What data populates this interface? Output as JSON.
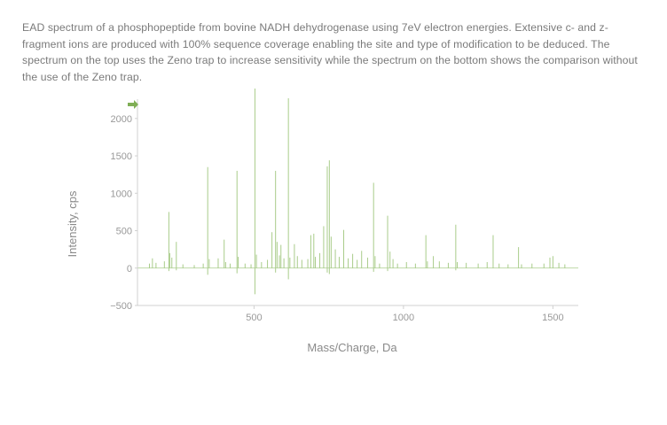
{
  "caption": "EAD spectrum of a phosphopeptide from bovine NADH dehydrogenase using 7eV electron energies. Extensive c- and z-fragment ions are produced with 100% sequence coverage enabling the site and type of modification to be deduced. The spectrum on the top uses the Zeno trap to increase sensitivity while the spectrum on the bottom shows the comparison without the use of the Zeno trap.",
  "colors": {
    "spectrum": "#a9cc8a",
    "axis": "#d0d0d0",
    "arrow": "#7fae55",
    "text": "#888888"
  },
  "chart_data": {
    "type": "bar",
    "title": "",
    "xlabel": "Mass/Charge, Da",
    "ylabel": "Intensity, cps",
    "xlim": [
      110,
      1585
    ],
    "ylim": [
      -500,
      2400
    ],
    "xticks": [
      500,
      1000,
      1500
    ],
    "yticks": [
      -500,
      0,
      500,
      1000,
      1500,
      2000
    ],
    "grid": false,
    "series": [
      {
        "values": [
          [
            150,
            60
          ],
          [
            160,
            130
          ],
          [
            172,
            70
          ],
          [
            200,
            90
          ],
          [
            215,
            750
          ],
          [
            218,
            200
          ],
          [
            225,
            140
          ],
          [
            240,
            350
          ],
          [
            262,
            50
          ],
          [
            300,
            40
          ],
          [
            330,
            60
          ],
          [
            345,
            1350
          ],
          [
            350,
            120
          ],
          [
            380,
            130
          ],
          [
            400,
            380
          ],
          [
            405,
            80
          ],
          [
            420,
            60
          ],
          [
            443,
            1300
          ],
          [
            447,
            150
          ],
          [
            470,
            60
          ],
          [
            490,
            50
          ],
          [
            503,
            2400
          ],
          [
            508,
            180
          ],
          [
            525,
            80
          ],
          [
            545,
            110
          ],
          [
            560,
            480
          ],
          [
            572,
            1300
          ],
          [
            577,
            350
          ],
          [
            585,
            170
          ],
          [
            590,
            310
          ],
          [
            600,
            130
          ],
          [
            615,
            2270
          ],
          [
            620,
            140
          ],
          [
            635,
            320
          ],
          [
            645,
            160
          ],
          [
            660,
            110
          ],
          [
            680,
            120
          ],
          [
            690,
            440
          ],
          [
            700,
            460
          ],
          [
            705,
            150
          ],
          [
            720,
            200
          ],
          [
            733,
            560
          ],
          [
            745,
            1360
          ],
          [
            752,
            1440
          ],
          [
            758,
            420
          ],
          [
            772,
            250
          ],
          [
            785,
            150
          ],
          [
            800,
            510
          ],
          [
            815,
            130
          ],
          [
            830,
            190
          ],
          [
            845,
            110
          ],
          [
            860,
            230
          ],
          [
            880,
            140
          ],
          [
            900,
            1140
          ],
          [
            905,
            160
          ],
          [
            920,
            60
          ],
          [
            947,
            700
          ],
          [
            955,
            220
          ],
          [
            965,
            120
          ],
          [
            980,
            60
          ],
          [
            1010,
            80
          ],
          [
            1040,
            60
          ],
          [
            1075,
            440
          ],
          [
            1080,
            90
          ],
          [
            1100,
            160
          ],
          [
            1120,
            90
          ],
          [
            1150,
            70
          ],
          [
            1175,
            580
          ],
          [
            1180,
            80
          ],
          [
            1210,
            70
          ],
          [
            1250,
            60
          ],
          [
            1280,
            80
          ],
          [
            1300,
            440
          ],
          [
            1320,
            60
          ],
          [
            1350,
            50
          ],
          [
            1385,
            280
          ],
          [
            1395,
            50
          ],
          [
            1430,
            60
          ],
          [
            1470,
            60
          ],
          [
            1490,
            140
          ],
          [
            1500,
            160
          ],
          [
            1520,
            70
          ],
          [
            1540,
            50
          ]
        ]
      },
      {
        "values": [
          [
            215,
            -40
          ],
          [
            240,
            -30
          ],
          [
            345,
            -90
          ],
          [
            443,
            -70
          ],
          [
            503,
            -350
          ],
          [
            572,
            -60
          ],
          [
            615,
            -150
          ],
          [
            745,
            -60
          ],
          [
            752,
            -80
          ],
          [
            900,
            -50
          ],
          [
            947,
            -40
          ],
          [
            1175,
            -30
          ]
        ]
      }
    ]
  }
}
